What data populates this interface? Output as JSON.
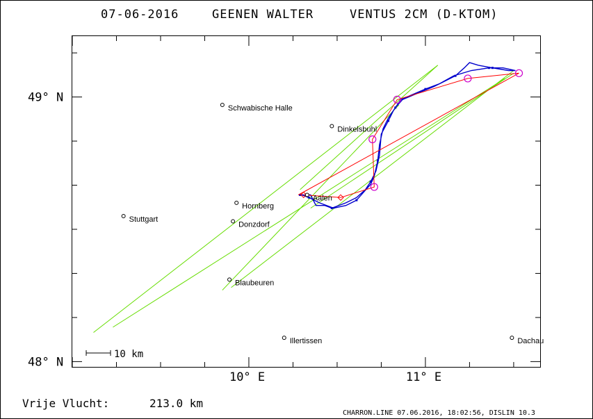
{
  "header": {
    "date": "07-06-2016",
    "pilot": "GEENEN WALTER",
    "glider": "VENTUS 2CM (D-KTOM)"
  },
  "axes": {
    "y_ticks": [
      {
        "label": "49° N",
        "lat": 49.0
      },
      {
        "label": "48° N",
        "lat": 48.0
      }
    ],
    "x_ticks": [
      {
        "label": "10° E",
        "lon": 10.0
      },
      {
        "label": "11° E",
        "lon": 11.0
      }
    ],
    "lon_range": [
      9.0,
      11.65
    ],
    "lat_range": [
      47.98,
      49.23
    ]
  },
  "towns": [
    {
      "name": "Schwabische Halle",
      "lon": 9.85,
      "lat": 48.97
    },
    {
      "name": "Dinkelsbuhl",
      "lon": 10.47,
      "lat": 48.89
    },
    {
      "name": "Hornberg",
      "lon": 9.93,
      "lat": 48.6
    },
    {
      "name": "Stuttgart",
      "lon": 9.29,
      "lat": 48.55
    },
    {
      "name": "Donzdorf",
      "lon": 9.91,
      "lat": 48.53
    },
    {
      "name": "Aalen",
      "lon": 10.33,
      "lat": 48.63
    },
    {
      "name": "Blaubeuren",
      "lon": 9.89,
      "lat": 48.31
    },
    {
      "name": "Illertissen",
      "lon": 10.2,
      "lat": 48.09
    },
    {
      "name": "Dachau",
      "lon": 11.49,
      "lat": 48.09
    }
  ],
  "scale_bar": {
    "label": "10 km"
  },
  "footer": {
    "distance_label": "Vrije Vlucht:",
    "distance_value": "213.0 km",
    "credit": "CHARRON.LINE 07.06.2016, 18:02:56, DISLIN 10.3"
  },
  "colors": {
    "track": "#0000cc",
    "task": "#ff0000",
    "turnpoint": "#cc00cc",
    "sector": "#66dd00",
    "text": "#000000"
  },
  "task_points": [
    {
      "lon": 10.31,
      "lat": 48.63
    },
    {
      "lon": 10.52,
      "lat": 48.62
    },
    {
      "lon": 10.71,
      "lat": 48.66
    },
    {
      "lon": 10.7,
      "lat": 48.84
    },
    {
      "lon": 10.84,
      "lat": 48.99
    },
    {
      "lon": 11.24,
      "lat": 49.07
    },
    {
      "lon": 11.53,
      "lat": 49.09
    },
    {
      "lon": 10.28,
      "lat": 48.63
    }
  ],
  "turnpoint_circles": [
    {
      "lon": 10.71,
      "lat": 48.66
    },
    {
      "lon": 10.7,
      "lat": 48.84
    },
    {
      "lon": 10.84,
      "lat": 48.99
    },
    {
      "lon": 11.24,
      "lat": 49.07
    },
    {
      "lon": 11.53,
      "lat": 49.09
    }
  ],
  "sector_lines": [
    [
      {
        "lon": 9.12,
        "lat": 48.11
      },
      {
        "lon": 11.07,
        "lat": 49.12
      }
    ],
    [
      {
        "lon": 9.23,
        "lat": 48.13
      },
      {
        "lon": 11.45,
        "lat": 49.07
      }
    ],
    [
      {
        "lon": 9.85,
        "lat": 48.27
      },
      {
        "lon": 10.85,
        "lat": 48.97
      }
    ],
    [
      {
        "lon": 9.9,
        "lat": 48.28
      },
      {
        "lon": 11.5,
        "lat": 49.1
      }
    ],
    [
      {
        "lon": 10.29,
        "lat": 48.65
      },
      {
        "lon": 11.07,
        "lat": 49.12
      }
    ],
    [
      {
        "lon": 10.35,
        "lat": 48.58
      },
      {
        "lon": 11.5,
        "lat": 49.09
      }
    ]
  ],
  "track": [
    {
      "lon": 10.29,
      "lat": 48.63
    },
    {
      "lon": 10.35,
      "lat": 48.63
    },
    {
      "lon": 10.38,
      "lat": 48.59
    },
    {
      "lon": 10.43,
      "lat": 48.59
    },
    {
      "lon": 10.47,
      "lat": 48.58
    },
    {
      "lon": 10.55,
      "lat": 48.6
    },
    {
      "lon": 10.61,
      "lat": 48.62
    },
    {
      "lon": 10.66,
      "lat": 48.65
    },
    {
      "lon": 10.69,
      "lat": 48.68
    },
    {
      "lon": 10.72,
      "lat": 48.72
    },
    {
      "lon": 10.74,
      "lat": 48.78
    },
    {
      "lon": 10.75,
      "lat": 48.86
    },
    {
      "lon": 10.79,
      "lat": 48.91
    },
    {
      "lon": 10.82,
      "lat": 48.95
    },
    {
      "lon": 10.86,
      "lat": 48.99
    },
    {
      "lon": 10.93,
      "lat": 49.01
    },
    {
      "lon": 11.0,
      "lat": 49.03
    },
    {
      "lon": 11.08,
      "lat": 49.05
    },
    {
      "lon": 11.16,
      "lat": 49.08
    },
    {
      "lon": 11.26,
      "lat": 49.1
    },
    {
      "lon": 11.36,
      "lat": 49.11
    },
    {
      "lon": 11.44,
      "lat": 49.11
    },
    {
      "lon": 11.51,
      "lat": 49.1
    },
    {
      "lon": 11.47,
      "lat": 49.1
    },
    {
      "lon": 11.38,
      "lat": 49.11
    },
    {
      "lon": 11.3,
      "lat": 49.12
    },
    {
      "lon": 11.25,
      "lat": 49.13
    },
    {
      "lon": 11.22,
      "lat": 49.11
    },
    {
      "lon": 11.17,
      "lat": 49.08
    },
    {
      "lon": 11.05,
      "lat": 49.04
    },
    {
      "lon": 10.94,
      "lat": 49.01
    },
    {
      "lon": 10.87,
      "lat": 48.99
    },
    {
      "lon": 10.83,
      "lat": 48.96
    },
    {
      "lon": 10.79,
      "lat": 48.92
    },
    {
      "lon": 10.76,
      "lat": 48.88
    },
    {
      "lon": 10.74,
      "lat": 48.82
    },
    {
      "lon": 10.73,
      "lat": 48.76
    },
    {
      "lon": 10.71,
      "lat": 48.7
    },
    {
      "lon": 10.69,
      "lat": 48.67
    },
    {
      "lon": 10.65,
      "lat": 48.64
    },
    {
      "lon": 10.61,
      "lat": 48.61
    },
    {
      "lon": 10.55,
      "lat": 48.59
    },
    {
      "lon": 10.48,
      "lat": 48.58
    },
    {
      "lon": 10.4,
      "lat": 48.6
    },
    {
      "lon": 10.34,
      "lat": 48.62
    },
    {
      "lon": 10.3,
      "lat": 48.63
    }
  ]
}
